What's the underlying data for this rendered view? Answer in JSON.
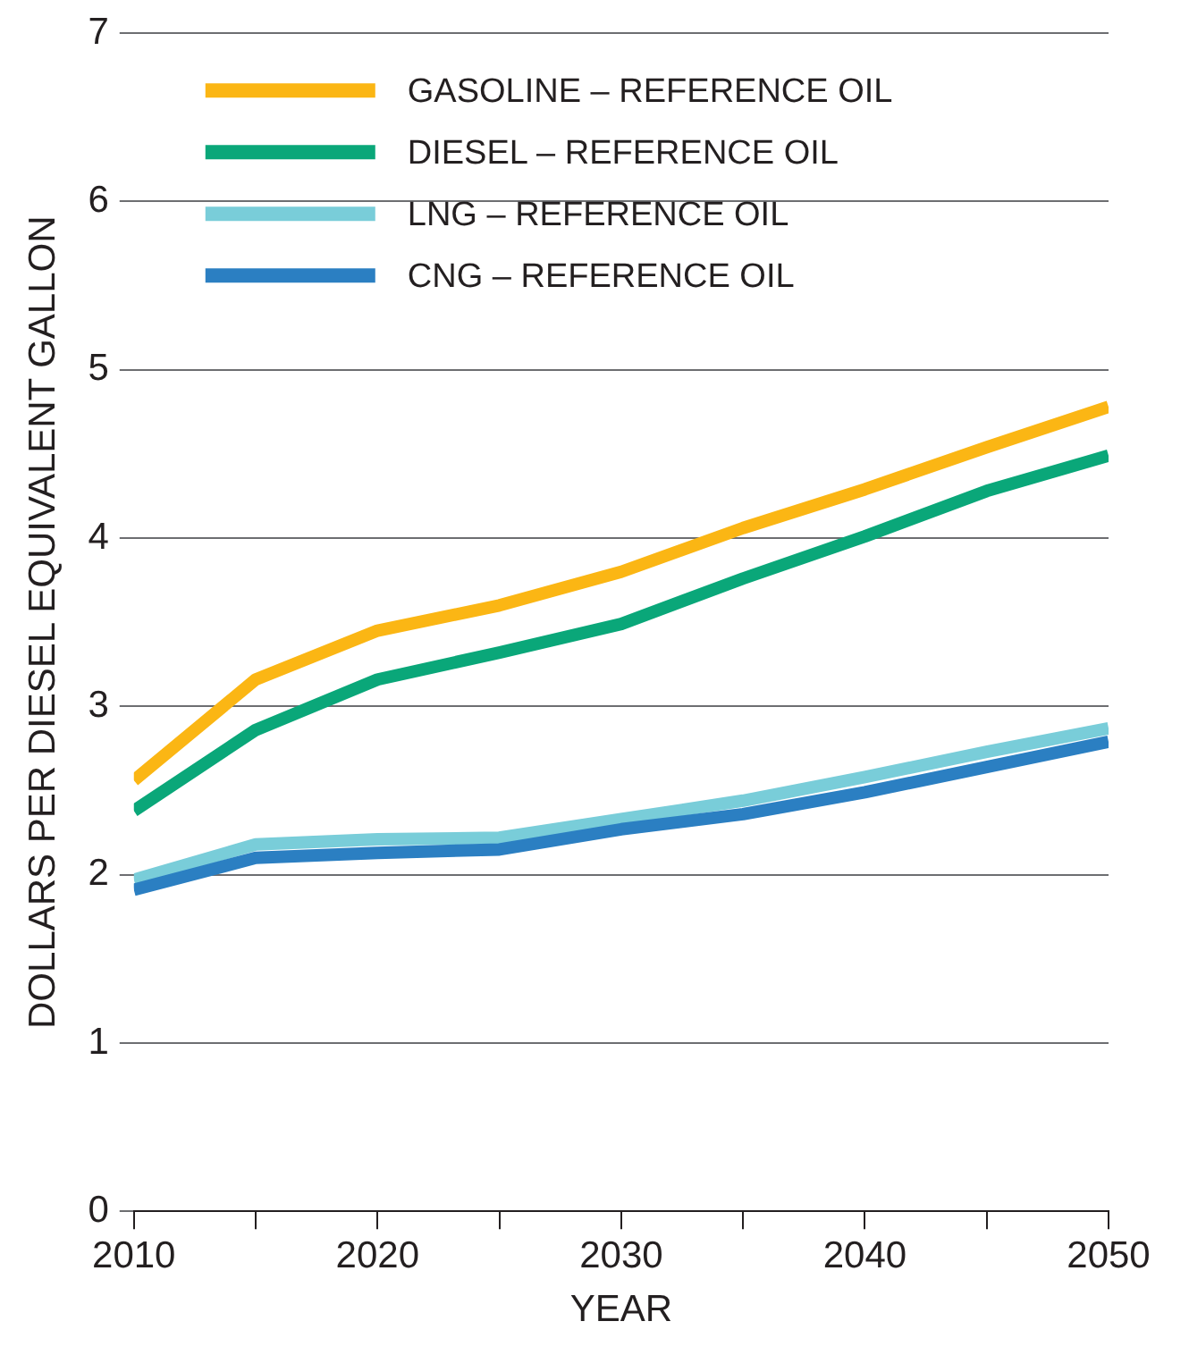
{
  "chart_data": {
    "type": "line",
    "xlabel": "YEAR",
    "ylabel": "DOLLARS PER DIESEL EQUIVALENT GALLON",
    "x": [
      2010,
      2015,
      2020,
      2025,
      2030,
      2035,
      2040,
      2045,
      2050
    ],
    "series": [
      {
        "name": "GASOLINE – REFERENCE OIL",
        "color": "#fbb614",
        "values": [
          2.56,
          3.16,
          3.45,
          3.6,
          3.8,
          4.06,
          4.29,
          4.54,
          4.78
        ]
      },
      {
        "name": "DIESEL – REFERENCE OIL",
        "color": "#0aa779",
        "values": [
          2.38,
          2.86,
          3.16,
          3.32,
          3.49,
          3.76,
          4.01,
          4.28,
          4.49
        ]
      },
      {
        "name": "LNG – REFERENCE OIL",
        "color": "#79cdd9",
        "values": [
          1.97,
          2.18,
          2.21,
          2.22,
          2.33,
          2.44,
          2.58,
          2.73,
          2.87
        ]
      },
      {
        "name": "CNG – REFERENCE OIL",
        "color": "#2b7fc2",
        "values": [
          1.91,
          2.1,
          2.13,
          2.15,
          2.27,
          2.36,
          2.49,
          2.64,
          2.79
        ]
      }
    ],
    "xlim": [
      2010,
      2050
    ],
    "xticks": [
      2010,
      {
        "value": 2015,
        "label": null
      },
      2020,
      {
        "value": 2025,
        "label": null
      },
      2030,
      {
        "value": 2035,
        "label": null
      },
      2040,
      {
        "value": 2045,
        "label": null
      },
      2050
    ],
    "ylim": [
      0,
      7
    ],
    "yticks": [
      0,
      1,
      2,
      3,
      4,
      5,
      6,
      7
    ],
    "grid": "y",
    "legend": "top left",
    "marker": "none",
    "line_style": "solid"
  }
}
